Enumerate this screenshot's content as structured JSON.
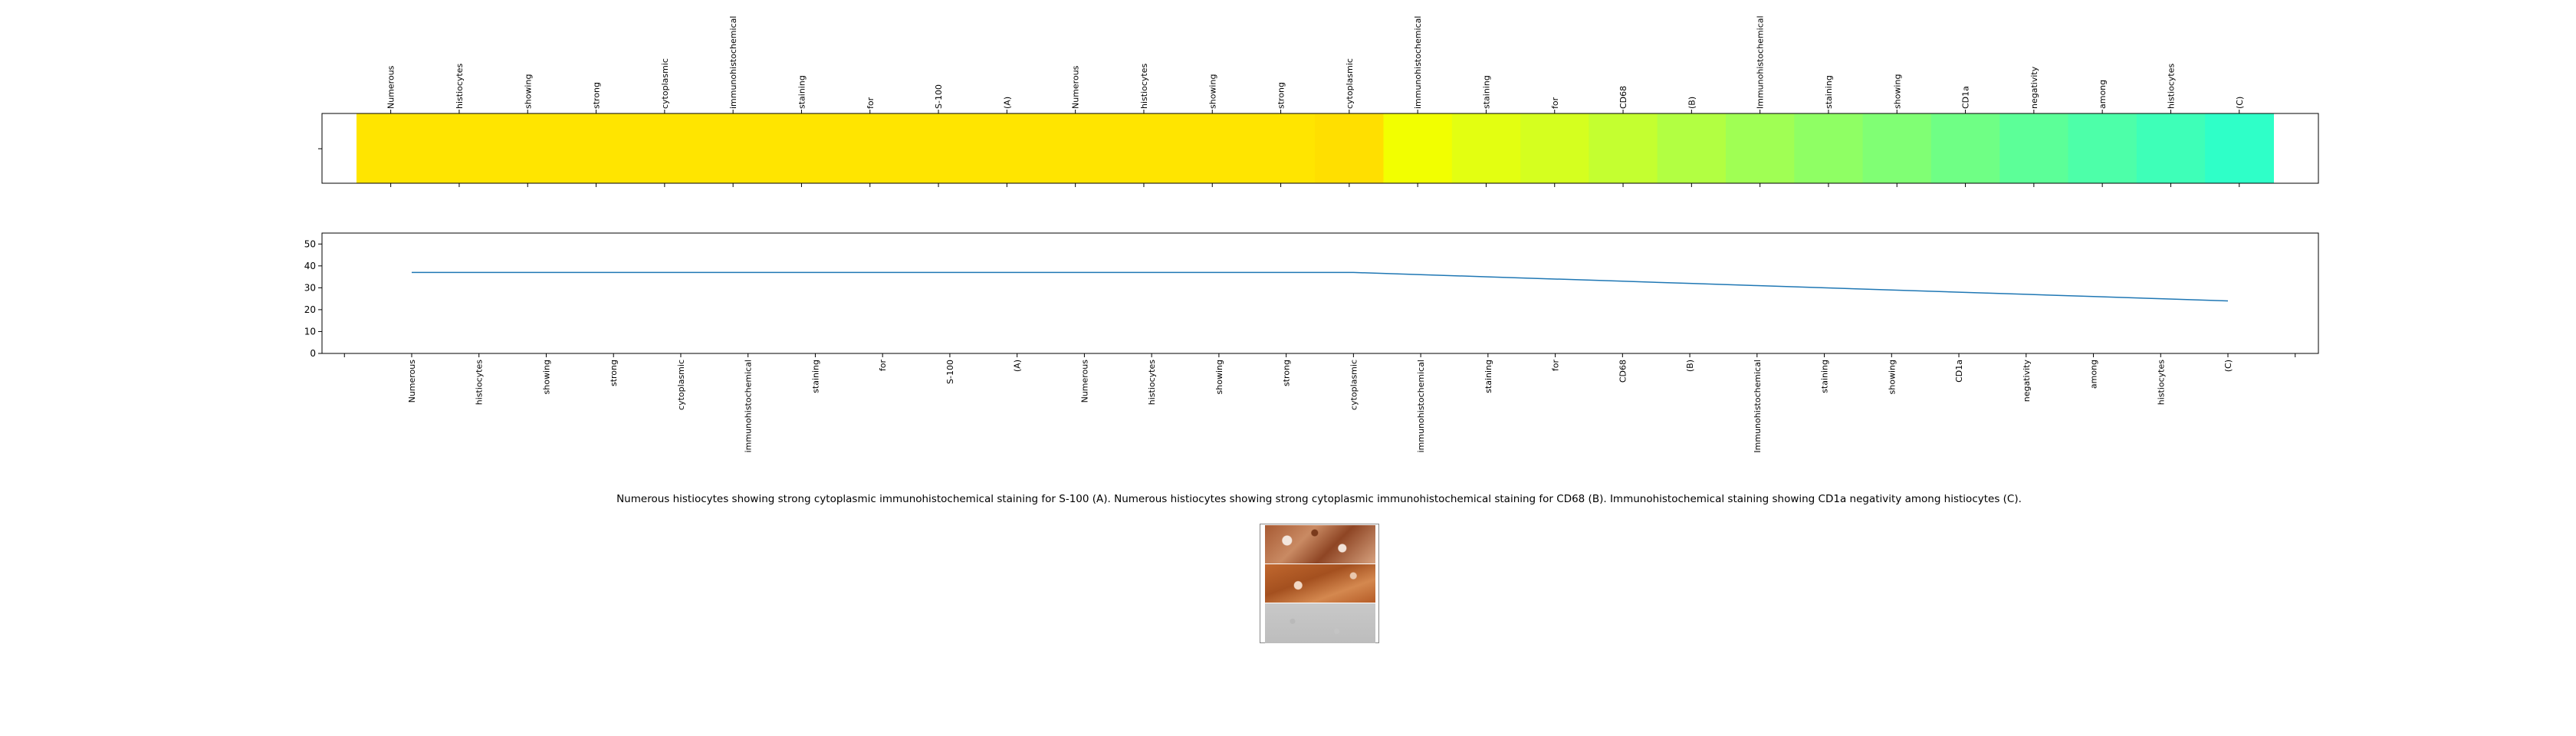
{
  "chart_data": [
    {
      "type": "heatmap",
      "categories": [
        "Numerous",
        "histiocytes",
        "showing",
        "strong",
        "cytoplasmic",
        "immunohistochemical",
        "staining",
        "for",
        "S-100",
        "(A)",
        "Numerous",
        "histiocytes",
        "showing",
        "strong",
        "cytoplasmic",
        "immunohistochemical",
        "staining",
        "for",
        "CD68",
        "(B)",
        "Immunohistochemical",
        "staining",
        "showing",
        "CD1a",
        "negativity",
        "among",
        "histiocytes",
        "(C)"
      ],
      "values": [
        37,
        37,
        37,
        37,
        37,
        37,
        37,
        37,
        37,
        37,
        37,
        37,
        37,
        37,
        37,
        36,
        35,
        34,
        33,
        32,
        31,
        30,
        29,
        28,
        27,
        26,
        25,
        24
      ],
      "colors": [
        "#ffe500",
        "#ffe500",
        "#ffe500",
        "#ffe500",
        "#ffe500",
        "#ffe500",
        "#ffe500",
        "#ffe500",
        "#ffe500",
        "#ffe500",
        "#ffe500",
        "#ffe500",
        "#ffe500",
        "#ffe500",
        "#ffdf00",
        "#f2ff00",
        "#e3ff11",
        "#d5ff1f",
        "#c4ff30",
        "#b2ff42",
        "#a0ff54",
        "#8fff64",
        "#80ff74",
        "#6fff85",
        "#5cff98",
        "#4dffa9",
        "#3effb8",
        "#2fffc8"
      ],
      "xtick_position": "top",
      "grid": false
    },
    {
      "type": "line",
      "x": [
        "Numerous",
        "histiocytes",
        "showing",
        "strong",
        "cytoplasmic",
        "immunohistochemical",
        "staining",
        "for",
        "S-100",
        "(A)",
        "Numerous",
        "histiocytes",
        "showing",
        "strong",
        "cytoplasmic",
        "immunohistochemical",
        "staining",
        "for",
        "CD68",
        "(B)",
        "Immunohistochemical",
        "staining",
        "showing",
        "CD1a",
        "negativity",
        "among",
        "histiocytes",
        "(C)"
      ],
      "series": [
        {
          "values": [
            37,
            37,
            37,
            37,
            37,
            37,
            37,
            37,
            37,
            37,
            37,
            37,
            37,
            37,
            37,
            36,
            35,
            34,
            33,
            32,
            31,
            30,
            29,
            28,
            27,
            26,
            25,
            24
          ],
          "color": "#1f77b4"
        }
      ],
      "yticks": [
        "0",
        "10",
        "20",
        "30",
        "40",
        "50"
      ],
      "ylim": [
        0,
        55
      ],
      "xlabel": "",
      "ylabel": "",
      "grid": false
    }
  ],
  "caption": "Numerous histiocytes showing strong cytoplasmic immunohistochemical staining for S-100 (A). Numerous histiocytes showing strong cytoplasmic immunohistochemical staining for CD68 (B). Immunohistochemical staining showing CD1a negativity among histiocytes (C)."
}
